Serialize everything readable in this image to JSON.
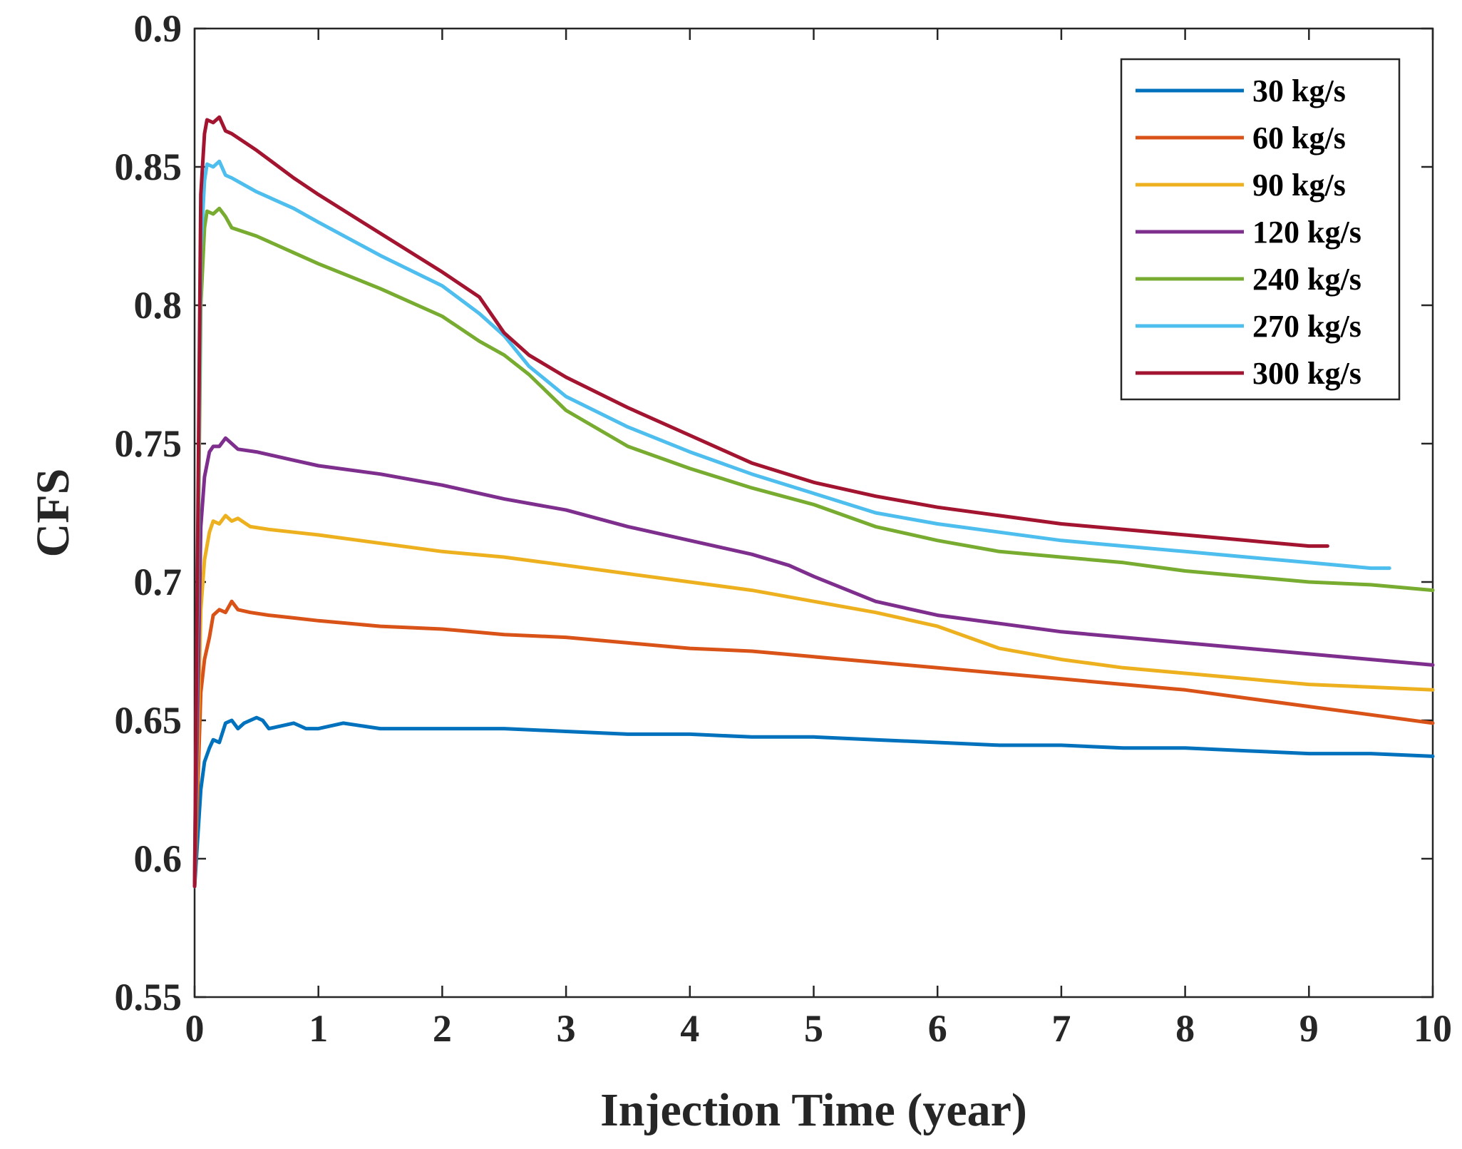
{
  "chart_data": {
    "type": "line",
    "xlabel": "Injection Time (year)",
    "ylabel": "CFS",
    "xlim": [
      0,
      10
    ],
    "ylim": [
      0.55,
      0.9
    ],
    "xticks": [
      "0",
      "1",
      "2",
      "3",
      "4",
      "5",
      "6",
      "7",
      "8",
      "9",
      "10"
    ],
    "yticks": [
      "0.55",
      "0.6",
      "0.65",
      "0.7",
      "0.75",
      "0.8",
      "0.85",
      "0.9"
    ],
    "grid": false,
    "legend_position": "top-right",
    "series": [
      {
        "name": "30 kg/s",
        "color": "#0072BD",
        "points": [
          [
            0,
            0.59
          ],
          [
            0.05,
            0.625
          ],
          [
            0.08,
            0.635
          ],
          [
            0.12,
            0.64
          ],
          [
            0.15,
            0.643
          ],
          [
            0.2,
            0.642
          ],
          [
            0.25,
            0.649
          ],
          [
            0.3,
            0.65
          ],
          [
            0.35,
            0.647
          ],
          [
            0.4,
            0.649
          ],
          [
            0.5,
            0.651
          ],
          [
            0.55,
            0.65
          ],
          [
            0.6,
            0.647
          ],
          [
            0.7,
            0.648
          ],
          [
            0.8,
            0.649
          ],
          [
            0.9,
            0.647
          ],
          [
            1,
            0.647
          ],
          [
            1.2,
            0.649
          ],
          [
            1.5,
            0.647
          ],
          [
            2,
            0.647
          ],
          [
            2.5,
            0.647
          ],
          [
            3,
            0.646
          ],
          [
            3.5,
            0.645
          ],
          [
            4,
            0.645
          ],
          [
            4.5,
            0.644
          ],
          [
            5,
            0.644
          ],
          [
            5.5,
            0.643
          ],
          [
            6,
            0.642
          ],
          [
            6.5,
            0.641
          ],
          [
            7,
            0.641
          ],
          [
            7.5,
            0.64
          ],
          [
            8,
            0.64
          ],
          [
            8.5,
            0.639
          ],
          [
            9,
            0.638
          ],
          [
            9.5,
            0.638
          ],
          [
            10,
            0.637
          ]
        ]
      },
      {
        "name": "60 kg/s",
        "color": "#D95319",
        "points": [
          [
            0,
            0.59
          ],
          [
            0.05,
            0.66
          ],
          [
            0.08,
            0.672
          ],
          [
            0.12,
            0.68
          ],
          [
            0.15,
            0.688
          ],
          [
            0.2,
            0.69
          ],
          [
            0.25,
            0.689
          ],
          [
            0.3,
            0.693
          ],
          [
            0.35,
            0.69
          ],
          [
            0.45,
            0.689
          ],
          [
            0.6,
            0.688
          ],
          [
            0.8,
            0.687
          ],
          [
            1,
            0.686
          ],
          [
            1.5,
            0.684
          ],
          [
            2,
            0.683
          ],
          [
            2.5,
            0.681
          ],
          [
            3,
            0.68
          ],
          [
            3.5,
            0.678
          ],
          [
            4,
            0.676
          ],
          [
            4.5,
            0.675
          ],
          [
            5,
            0.673
          ],
          [
            5.5,
            0.671
          ],
          [
            6,
            0.669
          ],
          [
            6.5,
            0.667
          ],
          [
            7,
            0.665
          ],
          [
            7.5,
            0.663
          ],
          [
            8,
            0.661
          ],
          [
            8.5,
            0.658
          ],
          [
            9,
            0.655
          ],
          [
            9.5,
            0.652
          ],
          [
            10,
            0.649
          ]
        ]
      },
      {
        "name": "90 kg/s",
        "color": "#EDB120",
        "points": [
          [
            0,
            0.59
          ],
          [
            0.05,
            0.69
          ],
          [
            0.08,
            0.708
          ],
          [
            0.12,
            0.718
          ],
          [
            0.15,
            0.722
          ],
          [
            0.2,
            0.721
          ],
          [
            0.25,
            0.724
          ],
          [
            0.3,
            0.722
          ],
          [
            0.35,
            0.723
          ],
          [
            0.45,
            0.72
          ],
          [
            0.6,
            0.719
          ],
          [
            0.8,
            0.718
          ],
          [
            1,
            0.717
          ],
          [
            1.5,
            0.714
          ],
          [
            2,
            0.711
          ],
          [
            2.5,
            0.709
          ],
          [
            3,
            0.706
          ],
          [
            3.5,
            0.703
          ],
          [
            4,
            0.7
          ],
          [
            4.5,
            0.697
          ],
          [
            5,
            0.693
          ],
          [
            5.5,
            0.689
          ],
          [
            6,
            0.684
          ],
          [
            6.5,
            0.676
          ],
          [
            7,
            0.672
          ],
          [
            7.5,
            0.669
          ],
          [
            8,
            0.667
          ],
          [
            8.5,
            0.665
          ],
          [
            9,
            0.663
          ],
          [
            9.5,
            0.662
          ],
          [
            10,
            0.661
          ]
        ]
      },
      {
        "name": "120 kg/s",
        "color": "#7E2F8E",
        "points": [
          [
            0,
            0.59
          ],
          [
            0.05,
            0.72
          ],
          [
            0.08,
            0.738
          ],
          [
            0.12,
            0.747
          ],
          [
            0.15,
            0.749
          ],
          [
            0.2,
            0.749
          ],
          [
            0.25,
            0.752
          ],
          [
            0.3,
            0.75
          ],
          [
            0.35,
            0.748
          ],
          [
            0.5,
            0.747
          ],
          [
            0.8,
            0.744
          ],
          [
            1,
            0.742
          ],
          [
            1.5,
            0.739
          ],
          [
            2,
            0.735
          ],
          [
            2.5,
            0.73
          ],
          [
            3,
            0.726
          ],
          [
            3.5,
            0.72
          ],
          [
            4,
            0.715
          ],
          [
            4.5,
            0.71
          ],
          [
            4.8,
            0.706
          ],
          [
            5,
            0.702
          ],
          [
            5.5,
            0.693
          ],
          [
            6,
            0.688
          ],
          [
            6.5,
            0.685
          ],
          [
            7,
            0.682
          ],
          [
            7.5,
            0.68
          ],
          [
            8,
            0.678
          ],
          [
            8.5,
            0.676
          ],
          [
            9,
            0.674
          ],
          [
            9.5,
            0.672
          ],
          [
            10,
            0.67
          ]
        ]
      },
      {
        "name": "240 kg/s",
        "color": "#77AC30",
        "points": [
          [
            0,
            0.59
          ],
          [
            0.05,
            0.8
          ],
          [
            0.08,
            0.828
          ],
          [
            0.1,
            0.834
          ],
          [
            0.15,
            0.833
          ],
          [
            0.2,
            0.835
          ],
          [
            0.25,
            0.832
          ],
          [
            0.3,
            0.828
          ],
          [
            0.5,
            0.825
          ],
          [
            0.8,
            0.819
          ],
          [
            1,
            0.815
          ],
          [
            1.5,
            0.806
          ],
          [
            2,
            0.796
          ],
          [
            2.3,
            0.787
          ],
          [
            2.5,
            0.782
          ],
          [
            2.7,
            0.775
          ],
          [
            3,
            0.762
          ],
          [
            3.5,
            0.749
          ],
          [
            4,
            0.741
          ],
          [
            4.5,
            0.734
          ],
          [
            5,
            0.728
          ],
          [
            5.5,
            0.72
          ],
          [
            6,
            0.715
          ],
          [
            6.5,
            0.711
          ],
          [
            7,
            0.709
          ],
          [
            7.5,
            0.707
          ],
          [
            8,
            0.704
          ],
          [
            8.5,
            0.702
          ],
          [
            9,
            0.7
          ],
          [
            9.5,
            0.699
          ],
          [
            10,
            0.697
          ]
        ]
      },
      {
        "name": "270 kg/s",
        "color": "#4DBEEE",
        "points": [
          [
            0,
            0.59
          ],
          [
            0.05,
            0.82
          ],
          [
            0.08,
            0.845
          ],
          [
            0.1,
            0.851
          ],
          [
            0.15,
            0.85
          ],
          [
            0.2,
            0.852
          ],
          [
            0.25,
            0.847
          ],
          [
            0.3,
            0.846
          ],
          [
            0.5,
            0.841
          ],
          [
            0.8,
            0.835
          ],
          [
            1,
            0.83
          ],
          [
            1.5,
            0.818
          ],
          [
            2,
            0.807
          ],
          [
            2.3,
            0.797
          ],
          [
            2.5,
            0.789
          ],
          [
            2.7,
            0.778
          ],
          [
            3,
            0.767
          ],
          [
            3.5,
            0.756
          ],
          [
            4,
            0.747
          ],
          [
            4.5,
            0.739
          ],
          [
            5,
            0.732
          ],
          [
            5.5,
            0.725
          ],
          [
            6,
            0.721
          ],
          [
            6.5,
            0.718
          ],
          [
            7,
            0.715
          ],
          [
            7.5,
            0.713
          ],
          [
            8,
            0.711
          ],
          [
            8.5,
            0.709
          ],
          [
            9,
            0.707
          ],
          [
            9.5,
            0.705
          ],
          [
            9.65,
            0.705
          ]
        ]
      },
      {
        "name": "300 kg/s",
        "color": "#A2142F",
        "points": [
          [
            0,
            0.59
          ],
          [
            0.05,
            0.84
          ],
          [
            0.08,
            0.862
          ],
          [
            0.1,
            0.867
          ],
          [
            0.15,
            0.866
          ],
          [
            0.2,
            0.868
          ],
          [
            0.25,
            0.863
          ],
          [
            0.3,
            0.862
          ],
          [
            0.5,
            0.856
          ],
          [
            0.8,
            0.846
          ],
          [
            1,
            0.84
          ],
          [
            1.5,
            0.826
          ],
          [
            2,
            0.812
          ],
          [
            2.3,
            0.803
          ],
          [
            2.5,
            0.79
          ],
          [
            2.7,
            0.782
          ],
          [
            3,
            0.774
          ],
          [
            3.5,
            0.763
          ],
          [
            4,
            0.753
          ],
          [
            4.5,
            0.743
          ],
          [
            5,
            0.736
          ],
          [
            5.5,
            0.731
          ],
          [
            6,
            0.727
          ],
          [
            6.5,
            0.724
          ],
          [
            7,
            0.721
          ],
          [
            7.5,
            0.719
          ],
          [
            8,
            0.717
          ],
          [
            8.5,
            0.715
          ],
          [
            9,
            0.713
          ],
          [
            9.15,
            0.713
          ]
        ]
      }
    ]
  }
}
